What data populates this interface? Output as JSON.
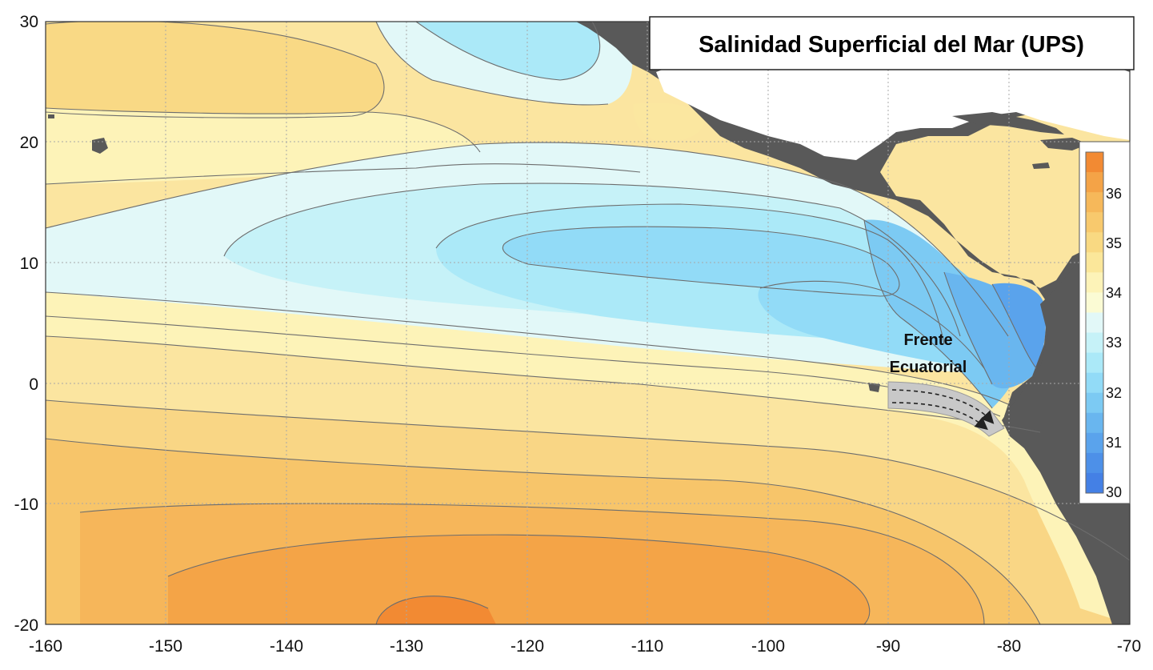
{
  "title": "Salinidad Superficial del Mar (UPS)",
  "annotation": {
    "line1": "Frente",
    "line2": "Ecuatorial"
  },
  "axes": {
    "x_ticks": [
      "-160",
      "-150",
      "-140",
      "-130",
      "-120",
      "-110",
      "-100",
      "-90",
      "-80",
      "-70"
    ],
    "y_ticks": [
      "30",
      "20",
      "10",
      "0",
      "-10",
      "-20"
    ]
  },
  "colorbar": {
    "labels": [
      "36",
      "35",
      "34",
      "33",
      "32",
      "31",
      "30"
    ],
    "colors": [
      "#f28a33",
      "#f4a347",
      "#f6b85a",
      "#f8c96d",
      "#f9d982",
      "#fbe79a",
      "#fdf3b8",
      "#fbfbd4",
      "#e2f8f8",
      "#c6f2f8",
      "#abe9f8",
      "#92dbf7",
      "#7ccaf3",
      "#69b6ef",
      "#5aa3ec",
      "#4d90e8",
      "#4480e5"
    ]
  },
  "colors": {
    "land": "#595959",
    "ocean_grid": "#a8a8a8",
    "contour": "#6d6d6d",
    "front_arrow_fill": "#c8c8c8"
  }
}
